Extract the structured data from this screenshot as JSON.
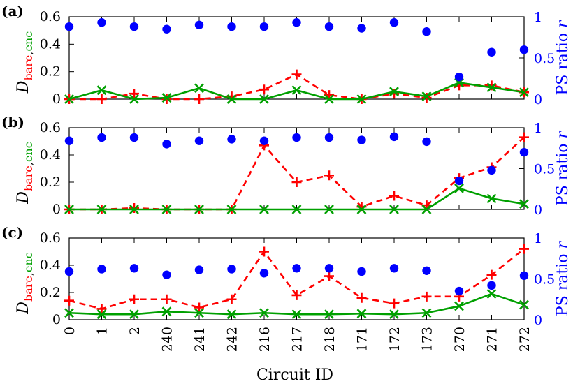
{
  "colors": {
    "bare": "#ff0000",
    "enc": "#00a000",
    "ratio": "#0000ff",
    "axis": "#000000"
  },
  "chart_data": [
    {
      "type": "line",
      "panel_label": "(a)",
      "categories": [
        "0",
        "1",
        "2",
        "240",
        "241",
        "242",
        "216",
        "217",
        "218",
        "171",
        "172",
        "173",
        "270",
        "271",
        "272"
      ],
      "xlabel": "Circuit ID",
      "ylabel_left": {
        "base": "D",
        "sub_bare": "bare",
        "sub_comma": ",",
        "sub_enc": "enc"
      },
      "ylabel_right": {
        "text": "PS ratio ",
        "symbol": "r"
      },
      "ylim_left": [
        0,
        0.6
      ],
      "yticks_left": [
        0,
        0.2,
        0.4,
        0.6
      ],
      "ylim_right": [
        0,
        1
      ],
      "yticks_right": [
        0,
        0.5,
        1
      ],
      "series": [
        {
          "key": "bare",
          "marker": "plus",
          "dash": "dashed",
          "axis": "left",
          "values": [
            0,
            0.0,
            0.04,
            0.0,
            0.0,
            0.02,
            0.07,
            0.18,
            0.03,
            0.0,
            0.04,
            0.01,
            0.1,
            0.1,
            0.05
          ]
        },
        {
          "key": "enc",
          "marker": "x",
          "dash": "solid",
          "axis": "left",
          "values": [
            0,
            0.065,
            0.0,
            0.01,
            0.08,
            0.0,
            0.0,
            0.065,
            0.0,
            0.0,
            0.055,
            0.02,
            0.12,
            0.085,
            0.05
          ]
        },
        {
          "key": "ratio",
          "marker": "dot",
          "dash": "none",
          "axis": "right",
          "values": [
            0.88,
            0.93,
            0.88,
            0.85,
            0.9,
            0.88,
            0.88,
            0.93,
            0.88,
            0.86,
            0.93,
            0.82,
            0.27,
            0.57,
            0.6
          ]
        }
      ]
    },
    {
      "type": "line",
      "panel_label": "(b)",
      "categories": [
        "0",
        "1",
        "2",
        "240",
        "241",
        "242",
        "216",
        "217",
        "218",
        "171",
        "172",
        "173",
        "270",
        "271",
        "272"
      ],
      "xlabel": "Circuit ID",
      "ylabel_left": {
        "base": "D",
        "sub_bare": "bare",
        "sub_comma": ",",
        "sub_enc": "enc"
      },
      "ylabel_right": {
        "text": "PS ratio ",
        "symbol": "r"
      },
      "ylim_left": [
        0,
        0.6
      ],
      "yticks_left": [
        0,
        0.2,
        0.4,
        0.6
      ],
      "ylim_right": [
        0,
        1
      ],
      "yticks_right": [
        0,
        0.5,
        1
      ],
      "series": [
        {
          "key": "bare",
          "marker": "plus",
          "dash": "dashed",
          "axis": "left",
          "values": [
            0,
            0.0,
            0.01,
            0.0,
            0.0,
            0.0,
            0.47,
            0.2,
            0.25,
            0.02,
            0.1,
            0.03,
            0.23,
            0.31,
            0.53
          ]
        },
        {
          "key": "enc",
          "marker": "x",
          "dash": "solid",
          "axis": "left",
          "values": [
            0,
            0.0,
            0.0,
            0.0,
            0.0,
            0.0,
            0.0,
            0.0,
            0.0,
            0.0,
            0.0,
            0.0,
            0.155,
            0.08,
            0.04
          ]
        },
        {
          "key": "ratio",
          "marker": "dot",
          "dash": "none",
          "axis": "right",
          "values": [
            0.84,
            0.88,
            0.88,
            0.8,
            0.84,
            0.86,
            0.84,
            0.88,
            0.88,
            0.85,
            0.89,
            0.83,
            0.35,
            0.48,
            0.7
          ]
        }
      ]
    },
    {
      "type": "line",
      "panel_label": "(c)",
      "categories": [
        "0",
        "1",
        "2",
        "240",
        "241",
        "242",
        "216",
        "217",
        "218",
        "171",
        "172",
        "173",
        "270",
        "271",
        "272"
      ],
      "xlabel": "Circuit ID",
      "ylabel_left": {
        "base": "D",
        "sub_bare": "bare",
        "sub_comma": ",",
        "sub_enc": "enc"
      },
      "ylabel_right": {
        "text": "PS ratio ",
        "symbol": "r"
      },
      "ylim_left": [
        0,
        0.6
      ],
      "yticks_left": [
        0,
        0.2,
        0.4,
        0.6
      ],
      "ylim_right": [
        0,
        1
      ],
      "yticks_right": [
        0,
        0.5,
        1
      ],
      "series": [
        {
          "key": "bare",
          "marker": "plus",
          "dash": "dashed",
          "axis": "left",
          "values": [
            0.14,
            0.08,
            0.15,
            0.15,
            0.09,
            0.15,
            0.5,
            0.18,
            0.32,
            0.16,
            0.12,
            0.17,
            0.17,
            0.33,
            0.52
          ]
        },
        {
          "key": "enc",
          "marker": "x",
          "dash": "solid",
          "axis": "left",
          "values": [
            0.05,
            0.04,
            0.04,
            0.06,
            0.05,
            0.04,
            0.05,
            0.04,
            0.04,
            0.045,
            0.04,
            0.05,
            0.1,
            0.19,
            0.11
          ]
        },
        {
          "key": "ratio",
          "marker": "dot",
          "dash": "none",
          "axis": "right",
          "values": [
            0.59,
            0.62,
            0.63,
            0.55,
            0.61,
            0.62,
            0.57,
            0.63,
            0.63,
            0.59,
            0.63,
            0.6,
            0.35,
            0.42,
            0.54
          ]
        }
      ]
    }
  ]
}
